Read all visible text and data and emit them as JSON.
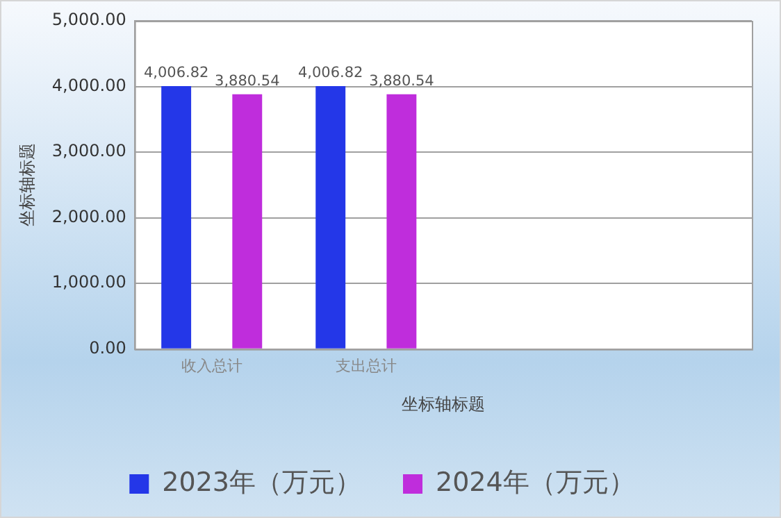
{
  "chart_data": {
    "type": "bar",
    "xlabel": "坐标轴标题",
    "ylabel": "坐标轴标题",
    "categories": [
      "收入总计",
      "支出总计",
      null,
      null
    ],
    "series": [
      {
        "name": "2023年（万元）",
        "color": "#2437e8",
        "values": [
          4006.82,
          4006.82,
          null,
          null
        ],
        "value_labels": [
          "4,006.82",
          "4,006.82",
          null,
          null
        ]
      },
      {
        "name": "2024年（万元）",
        "color": "#bf2ddc",
        "values": [
          3880.54,
          3880.54,
          null,
          null
        ],
        "value_labels": [
          "3,880.54",
          "3,880.54",
          null,
          null
        ]
      }
    ],
    "ylim": [
      0,
      5000
    ],
    "yticks": [
      {
        "value": 0,
        "label": "0.00"
      },
      {
        "value": 1000,
        "label": "1,000.00"
      },
      {
        "value": 2000,
        "label": "2,000.00"
      },
      {
        "value": 3000,
        "label": "3,000.00"
      },
      {
        "value": 4000,
        "label": "4,000.00"
      },
      {
        "value": 5000,
        "label": "5,000.00"
      }
    ],
    "grid": "y",
    "legend": "bottom"
  }
}
